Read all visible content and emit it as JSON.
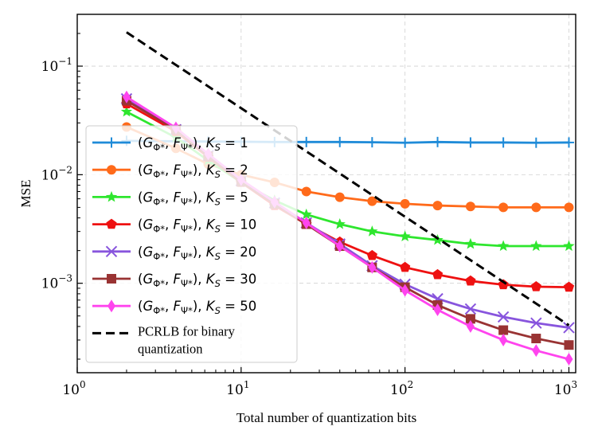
{
  "chart_data": {
    "type": "line",
    "title": "",
    "xlabel": "Total number of quantization bits",
    "ylabel": "MSE",
    "xscale": "log",
    "yscale": "log",
    "xlim": [
      1,
      1100
    ],
    "ylim": [
      0.00015,
      0.3
    ],
    "grid": true,
    "legend_position": "center-left",
    "x_ticks": [
      {
        "value": 1,
        "base": "10",
        "exp": "0"
      },
      {
        "value": 10,
        "base": "10",
        "exp": "1"
      },
      {
        "value": 100,
        "base": "10",
        "exp": "2"
      },
      {
        "value": 1000,
        "base": "10",
        "exp": "3"
      }
    ],
    "y_ticks": [
      {
        "value": 0.001,
        "base": "10",
        "exp": "−3"
      },
      {
        "value": 0.01,
        "base": "10",
        "exp": "−2"
      },
      {
        "value": 0.1,
        "base": "10",
        "exp": "−1"
      }
    ],
    "x": [
      2,
      4,
      6.3,
      10,
      16,
      25,
      40,
      63,
      100,
      158,
      251,
      398,
      631,
      1000
    ],
    "series": [
      {
        "name": "KS=1",
        "legend_ks": "1",
        "color": "#1f8bd8",
        "marker": "plus",
        "values": [
          0.0205,
          0.0203,
          0.0202,
          0.0201,
          0.02,
          0.02,
          0.02,
          0.0199,
          0.0197,
          0.02,
          0.0198,
          0.0198,
          0.0197,
          0.0198
        ]
      },
      {
        "name": "KS=2",
        "legend_ks": "2",
        "color": "#ff6a1a",
        "marker": "circle",
        "values": [
          0.0275,
          0.0175,
          0.0125,
          0.01,
          0.0085,
          0.007,
          0.0062,
          0.0057,
          0.0054,
          0.0052,
          0.0051,
          0.005,
          0.005,
          0.005
        ]
      },
      {
        "name": "KS=5",
        "legend_ks": "5",
        "color": "#2ee62e",
        "marker": "star",
        "values": [
          0.038,
          0.022,
          0.0135,
          0.0085,
          0.0058,
          0.0043,
          0.0035,
          0.003,
          0.0027,
          0.0025,
          0.0023,
          0.0022,
          0.0022,
          0.0022
        ]
      },
      {
        "name": "KS=10",
        "legend_ks": "10",
        "color": "#ee1111",
        "marker": "pentagon",
        "values": [
          0.045,
          0.025,
          0.0145,
          0.0085,
          0.0052,
          0.0035,
          0.0024,
          0.0018,
          0.0014,
          0.0012,
          0.00105,
          0.00097,
          0.00093,
          0.00092
        ]
      },
      {
        "name": "KS=20",
        "legend_ks": "20",
        "color": "#8855dd",
        "marker": "x",
        "values": [
          0.05,
          0.026,
          0.015,
          0.0088,
          0.0055,
          0.0036,
          0.0023,
          0.00145,
          0.00098,
          0.00072,
          0.00058,
          0.00049,
          0.00043,
          0.00039
        ]
      },
      {
        "name": "KS=30",
        "legend_ks": "30",
        "color": "#993333",
        "marker": "square",
        "values": [
          0.048,
          0.026,
          0.0148,
          0.0086,
          0.0054,
          0.0035,
          0.0022,
          0.0014,
          0.00092,
          0.00063,
          0.00047,
          0.00037,
          0.00031,
          0.00027
        ]
      },
      {
        "name": "KS=50",
        "legend_ks": "50",
        "color": "#ff44ee",
        "marker": "diamond",
        "values": [
          0.052,
          0.027,
          0.0155,
          0.009,
          0.0056,
          0.0036,
          0.0022,
          0.0014,
          0.00086,
          0.00057,
          0.0004,
          0.0003,
          0.00024,
          0.0002
        ]
      }
    ],
    "pcrlb": {
      "name": "PCRLB for binary quantization",
      "legend_line1": "PCRLB for binary",
      "legend_line2": " quantization",
      "color": "#000000",
      "x": [
        2,
        1000
      ],
      "values": [
        0.205,
        0.00041
      ]
    }
  }
}
